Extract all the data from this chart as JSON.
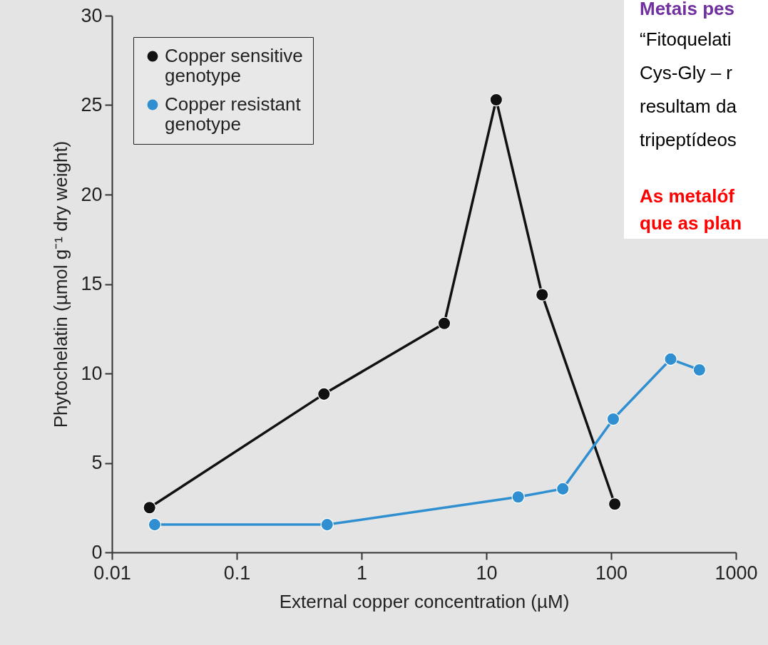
{
  "chart_data": {
    "type": "line",
    "xlabel": "External copper concentration (µM)",
    "ylabel": "Phytochelatin (µmol g⁻¹ dry weight)",
    "log": "x",
    "xlim": [
      0.01,
      1000
    ],
    "xticks": [
      0.01,
      0.1,
      1,
      10,
      100,
      1000
    ],
    "ylim": [
      0,
      30
    ],
    "yticks": [
      0,
      5,
      10,
      15,
      20,
      25,
      30
    ],
    "grid": false,
    "legend": "top left",
    "marker": "circle",
    "line_style": "solid",
    "series": [
      {
        "name": "Copper sensitive genotype",
        "color": "#111111",
        "x": [
          0.02,
          0.5,
          4.6,
          12,
          28,
          107
        ],
        "values": [
          2.5,
          8.85,
          12.8,
          25.3,
          14.4,
          2.7
        ]
      },
      {
        "name": "Copper resistant genotype",
        "color": "#2f8fd0",
        "x": [
          0.022,
          0.53,
          18,
          41,
          104,
          300,
          510
        ],
        "values": [
          1.55,
          1.55,
          3.1,
          3.55,
          7.45,
          10.8,
          10.2
        ]
      }
    ],
    "annotations": [
      "Metais pes",
      "“Fitoquelati",
      "Cys-Gly – r",
      "resultam da",
      "tripeptídeos",
      "As metalóf",
      "que as plan"
    ]
  }
}
